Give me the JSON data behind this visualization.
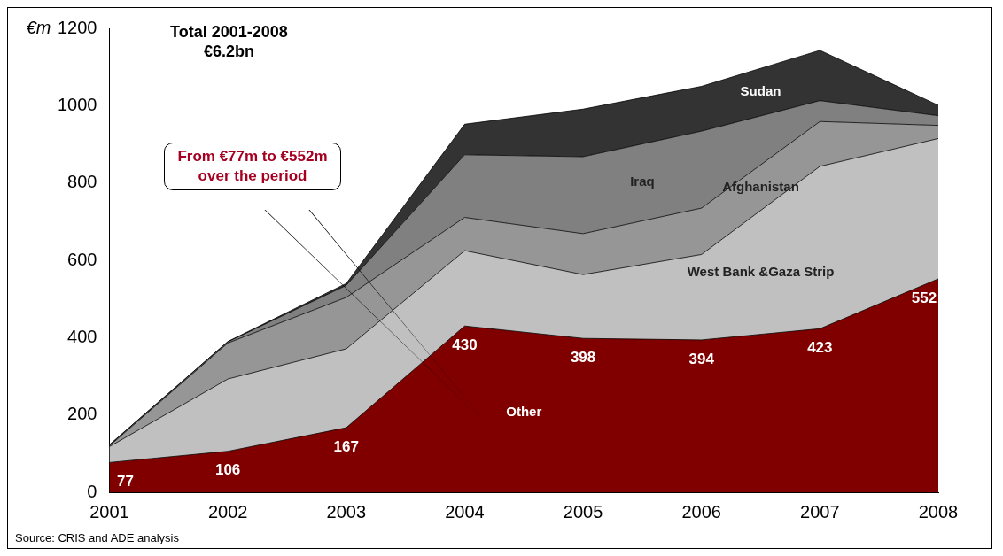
{
  "chart_data": {
    "type": "area",
    "title": "Total 2001-2008\n€6.2bn",
    "ylabel": "€m",
    "categories": [
      "2001",
      "2002",
      "2003",
      "2004",
      "2005",
      "2006",
      "2007",
      "2008"
    ],
    "stacked": true,
    "ylim": [
      0,
      1200
    ],
    "yticks": [
      0,
      200,
      400,
      600,
      800,
      1000,
      1200
    ],
    "grid": false,
    "legend": false,
    "series": [
      {
        "name": "Other",
        "color": "#800000",
        "values": [
          77,
          106,
          167,
          430,
          398,
          394,
          423,
          552
        ],
        "value_labels": [
          "77",
          "106",
          "167",
          "430",
          "398",
          "394",
          "423",
          "552"
        ]
      },
      {
        "name": "West Bank &Gaza Strip",
        "color": "#c0c0c0",
        "values": [
          41,
          187,
          204,
          195,
          165,
          221,
          420,
          363
        ]
      },
      {
        "name": "Afghanistan",
        "color": "#969696",
        "values": [
          2,
          93,
          133,
          86,
          106,
          120,
          116,
          34
        ]
      },
      {
        "name": "Iraq",
        "color": "#808080",
        "values": [
          2,
          3,
          31,
          162,
          199,
          199,
          54,
          25
        ]
      },
      {
        "name": "Sudan",
        "color": "#333333",
        "values": [
          1,
          1,
          5,
          79,
          123,
          116,
          130,
          27
        ]
      }
    ],
    "annotations": [
      "From €77m to €552m over the period",
      "Source: CRIS and ADE analysis"
    ]
  }
}
